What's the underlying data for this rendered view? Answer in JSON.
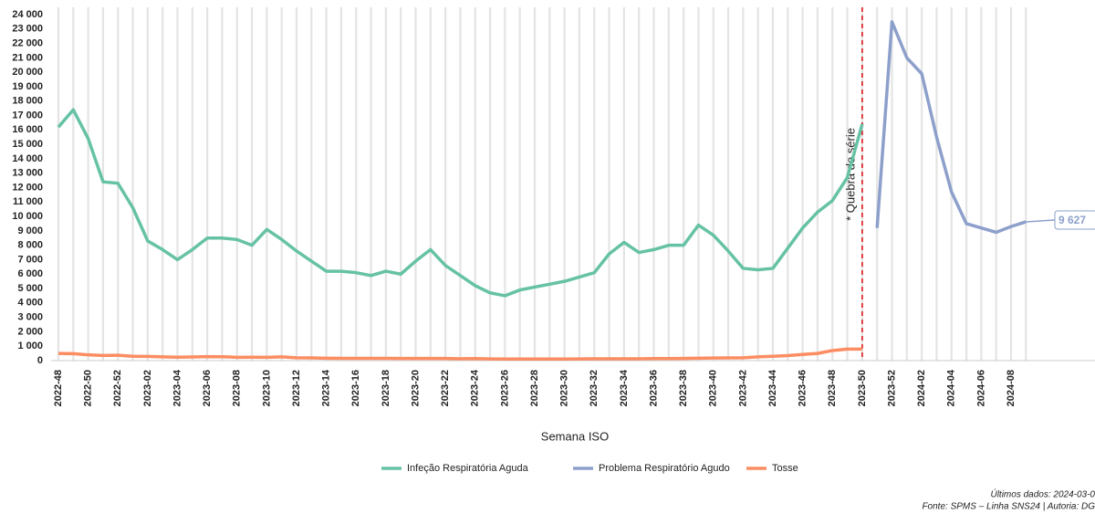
{
  "chart_data": {
    "type": "line",
    "x_label": "Semana ISO",
    "annotation": "* Quebra de série",
    "footer": [
      "Últimos dados: 2024-03-0",
      "Fonte: SPMS – Linha SNS24 | Autoria: DG"
    ],
    "categories": [
      "2022-48",
      null,
      "2022-50",
      null,
      "2022-52",
      null,
      "2023-02",
      null,
      "2023-04",
      null,
      "2023-06",
      null,
      "2023-08",
      null,
      "2023-10",
      null,
      "2023-12",
      null,
      "2023-14",
      null,
      "2023-16",
      null,
      "2023-18",
      null,
      "2023-20",
      null,
      "2023-22",
      null,
      "2023-24",
      null,
      "2023-26",
      null,
      "2023-28",
      null,
      "2023-30",
      null,
      "2023-32",
      null,
      "2023-34",
      null,
      "2023-36",
      null,
      "2023-38",
      null,
      "2023-40",
      null,
      "2023-42",
      null,
      "2023-44",
      null,
      "2023-46",
      null,
      "2023-48",
      null,
      "2023-50",
      null,
      "2023-52",
      null,
      "2024-02",
      null,
      "2024-04",
      null,
      "2024-06",
      null,
      "2024-08",
      null
    ],
    "series": [
      {
        "name": "Infeção Respiratória Aguda",
        "color": "#66c2a5",
        "values": [
          16200,
          17400,
          15400,
          12400,
          12300,
          10600,
          8300,
          7700,
          7000,
          7700,
          8500,
          8500,
          8400,
          8000,
          9100,
          8400,
          7600,
          6900,
          6200,
          6200,
          6100,
          5900,
          6200,
          6000,
          6900,
          7700,
          6600,
          5900,
          5200,
          4700,
          4500,
          4900,
          5100,
          5300,
          5500,
          5800,
          6100,
          7400,
          8200,
          7500,
          7700,
          8000,
          8000,
          9400,
          8700,
          7600,
          6400,
          6300,
          6400,
          7800,
          9200,
          10300,
          11100,
          12700,
          16400,
          null,
          null,
          null,
          null,
          null,
          null,
          null,
          null,
          null,
          null,
          null
        ]
      },
      {
        "name": "Problema Respiratório Agudo",
        "color": "#8da0cb",
        "values": [
          null,
          null,
          null,
          null,
          null,
          null,
          null,
          null,
          null,
          null,
          null,
          null,
          null,
          null,
          null,
          null,
          null,
          null,
          null,
          null,
          null,
          null,
          null,
          null,
          null,
          null,
          null,
          null,
          null,
          null,
          null,
          null,
          null,
          null,
          null,
          null,
          null,
          null,
          null,
          null,
          null,
          null,
          null,
          null,
          null,
          null,
          null,
          null,
          null,
          null,
          null,
          null,
          null,
          null,
          null,
          9200,
          23500,
          21000,
          19900,
          15500,
          11700,
          9500,
          9200,
          8900,
          9300,
          9627
        ],
        "value_labels": [
          null,
          null,
          null,
          null,
          null,
          null,
          null,
          null,
          null,
          null,
          null,
          null,
          null,
          null,
          null,
          null,
          null,
          null,
          null,
          null,
          null,
          null,
          null,
          null,
          null,
          null,
          null,
          null,
          null,
          null,
          null,
          null,
          null,
          null,
          null,
          null,
          null,
          null,
          null,
          null,
          null,
          null,
          null,
          null,
          null,
          null,
          null,
          null,
          null,
          null,
          null,
          null,
          null,
          null,
          null,
          null,
          null,
          null,
          null,
          null,
          null,
          null,
          null,
          null,
          null,
          "9 627"
        ]
      },
      {
        "name": "Tosse",
        "color": "#fc8d62",
        "values": [
          500,
          480,
          400,
          360,
          370,
          300,
          290,
          260,
          240,
          250,
          280,
          270,
          230,
          240,
          230,
          260,
          200,
          190,
          170,
          160,
          160,
          160,
          160,
          150,
          150,
          150,
          150,
          130,
          140,
          120,
          110,
          110,
          110,
          110,
          110,
          120,
          130,
          130,
          130,
          130,
          140,
          140,
          150,
          170,
          180,
          190,
          200,
          260,
          300,
          350,
          430,
          500,
          700,
          800,
          800,
          null,
          null,
          null,
          null,
          null,
          null,
          null,
          null,
          null,
          null,
          null
        ]
      }
    ],
    "ylim": [
      0,
      24000
    ],
    "yticks": [
      0,
      {
        "value": 1000,
        "label": "1 000"
      },
      {
        "value": 2000,
        "label": "2 000"
      },
      {
        "value": 3000,
        "label": "3 000"
      },
      {
        "value": 4000,
        "label": "4 000"
      },
      {
        "value": 5000,
        "label": "5 000"
      },
      {
        "value": 6000,
        "label": "6 000"
      },
      {
        "value": 7000,
        "label": "7 000"
      },
      {
        "value": 8000,
        "label": "8 000"
      },
      {
        "value": 9000,
        "label": "9 000"
      },
      {
        "value": 10000,
        "label": "10 000"
      },
      {
        "value": 11000,
        "label": "11 000"
      },
      {
        "value": 12000,
        "label": "12 000"
      },
      {
        "value": 13000,
        "label": "13 000"
      },
      {
        "value": 14000,
        "label": "14 000"
      },
      {
        "value": 15000,
        "label": "15 000"
      },
      {
        "value": 16000,
        "label": "16 000"
      },
      {
        "value": 17000,
        "label": "17 000"
      },
      {
        "value": 18000,
        "label": "18 000"
      },
      {
        "value": 19000,
        "label": "19 000"
      },
      {
        "value": 20000,
        "label": "20 000"
      },
      {
        "value": 21000,
        "label": "21 000"
      },
      {
        "value": 22000,
        "label": "22 000"
      },
      {
        "value": 23000,
        "label": "23 000"
      },
      {
        "value": 24000,
        "label": "24 000"
      }
    ],
    "grid": true,
    "legend": "bottom"
  }
}
